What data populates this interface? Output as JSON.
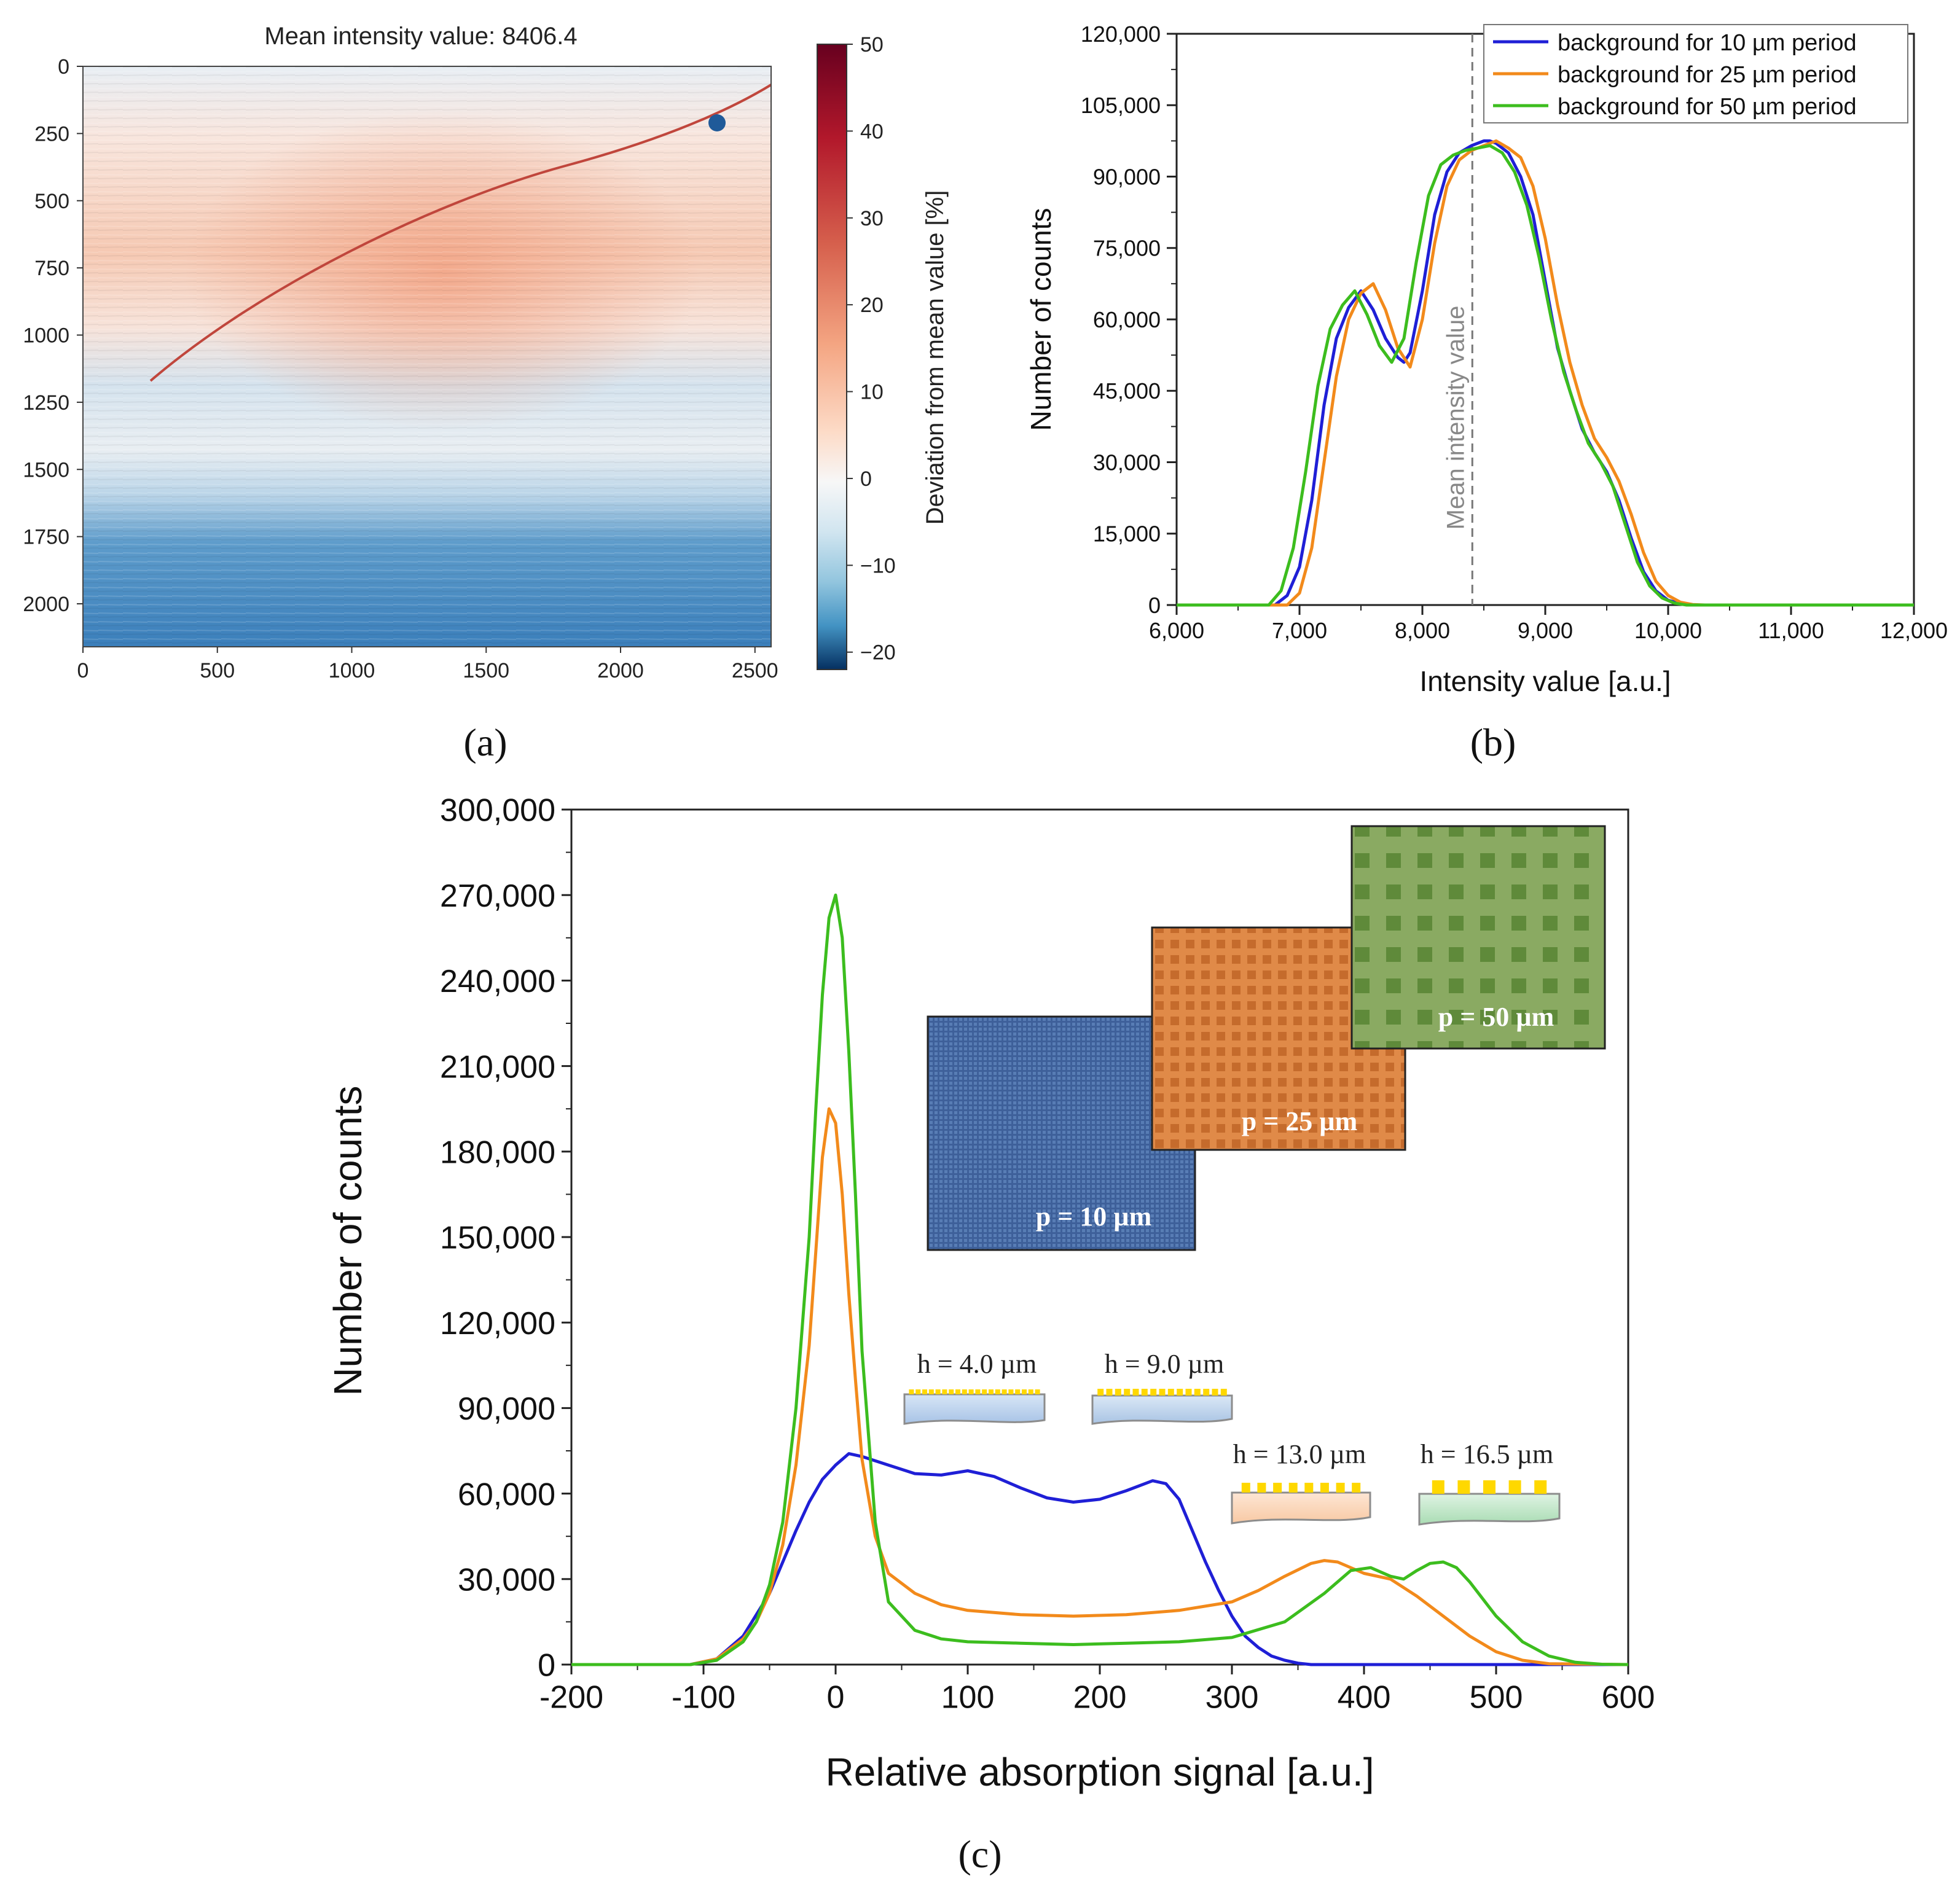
{
  "panel_labels": {
    "a": "(a)",
    "b": "(b)",
    "c": "(c)"
  },
  "chart_data": [
    {
      "id": "a",
      "type": "heatmap",
      "title": "Mean intensity value: 8406.4",
      "xlim": [
        0,
        2560
      ],
      "ylim": [
        0,
        2160
      ],
      "x_ticks": [
        "0",
        "500",
        "1000",
        "1500",
        "2000",
        "2500"
      ],
      "y_ticks": [
        "0",
        "250",
        "500",
        "750",
        "1000",
        "1250",
        "1500",
        "1750",
        "2000"
      ],
      "colorbar": {
        "label": "Deviation from mean value [%]",
        "range": [
          -22,
          50
        ],
        "ticks": [
          "50",
          "40",
          "30",
          "20",
          "10",
          "0",
          "−10",
          "−20"
        ],
        "colors": {
          "high": "#67001f",
          "mid": "#f7f7f7",
          "low": "#053061"
        }
      }
    },
    {
      "id": "b",
      "type": "line",
      "xlabel": "Intensity value [a.u.]",
      "ylabel": "Number of counts",
      "xlim": [
        6000,
        12000
      ],
      "ylim": [
        0,
        120000
      ],
      "x_ticks": [
        "6,000",
        "7,000",
        "8,000",
        "9,000",
        "10,000",
        "11,000",
        "12,000"
      ],
      "y_ticks": [
        "0",
        "15,000",
        "30,000",
        "45,000",
        "60,000",
        "75,000",
        "90,000",
        "105,000",
        "120,000"
      ],
      "mean_line": {
        "x": 8406.4,
        "label": "Mean intensity value"
      },
      "legend": "top-right",
      "series": [
        {
          "name": "background for 10 µm period",
          "color": "#1f1fd6",
          "x": [
            6000,
            6800,
            6900,
            7000,
            7100,
            7200,
            7300,
            7400,
            7500,
            7600,
            7700,
            7800,
            7850,
            7900,
            8000,
            8100,
            8200,
            8300,
            8400,
            8500,
            8550,
            8600,
            8700,
            8800,
            8900,
            9000,
            9100,
            9200,
            9300,
            9400,
            9500,
            9600,
            9700,
            9800,
            9900,
            10000,
            10100,
            10200,
            12000
          ],
          "y": [
            0,
            0,
            2000,
            8000,
            22000,
            42000,
            56000,
            62500,
            66000,
            62000,
            56000,
            52000,
            51000,
            53000,
            66000,
            82000,
            91000,
            95000,
            96500,
            97500,
            97500,
            97000,
            95000,
            90000,
            82000,
            68000,
            54000,
            45000,
            37000,
            32000,
            28000,
            22000,
            14000,
            7000,
            3000,
            1000,
            300,
            0,
            0
          ]
        },
        {
          "name": "background for 25 µm period",
          "color": "#f28a1b",
          "x": [
            6000,
            6900,
            7000,
            7100,
            7200,
            7300,
            7400,
            7500,
            7600,
            7700,
            7800,
            7900,
            8000,
            8100,
            8200,
            8300,
            8400,
            8500,
            8600,
            8700,
            8800,
            8900,
            9000,
            9100,
            9200,
            9300,
            9400,
            9500,
            9600,
            9700,
            9800,
            9900,
            10000,
            10100,
            10200,
            10300,
            12000
          ],
          "y": [
            0,
            0,
            2500,
            12000,
            30000,
            48000,
            60000,
            65500,
            67500,
            62000,
            54000,
            50000,
            60000,
            76000,
            88000,
            93500,
            95500,
            96500,
            97500,
            96000,
            94000,
            88000,
            77000,
            63000,
            51000,
            42000,
            35000,
            31000,
            26000,
            19000,
            11000,
            5000,
            2000,
            600,
            100,
            0,
            0
          ]
        },
        {
          "name": "background for 50 µm period",
          "color": "#3cbd1e",
          "x": [
            6000,
            6750,
            6850,
            6950,
            7050,
            7150,
            7250,
            7350,
            7450,
            7550,
            7650,
            7750,
            7850,
            7950,
            8050,
            8150,
            8250,
            8350,
            8450,
            8550,
            8650,
            8750,
            8850,
            8950,
            9050,
            9150,
            9250,
            9350,
            9450,
            9550,
            9650,
            9750,
            9850,
            9950,
            10050,
            10150,
            12000
          ],
          "y": [
            0,
            0,
            3000,
            12000,
            28000,
            46000,
            58000,
            63000,
            66000,
            61000,
            54500,
            51000,
            56000,
            72000,
            86000,
            92500,
            94500,
            95500,
            96000,
            96500,
            95000,
            91000,
            84000,
            73000,
            60000,
            49000,
            41000,
            34000,
            30000,
            25000,
            17000,
            9000,
            4000,
            1500,
            400,
            0,
            0
          ]
        }
      ]
    },
    {
      "id": "c",
      "type": "line",
      "xlabel": "Relative absorption signal [a.u.]",
      "ylabel": "Number of counts",
      "xlim": [
        -200,
        600
      ],
      "ylim": [
        0,
        300000
      ],
      "x_ticks": [
        "-200",
        "-100",
        "0",
        "100",
        "200",
        "300",
        "400",
        "500",
        "600"
      ],
      "y_ticks": [
        "0",
        "30,000",
        "60,000",
        "90,000",
        "120,000",
        "150,000",
        "180,000",
        "210,000",
        "240,000",
        "270,000",
        "300,000"
      ],
      "series": [
        {
          "name": "p = 10 µm",
          "color": "#1f1fd6",
          "x": [
            -200,
            -110,
            -90,
            -70,
            -50,
            -40,
            -30,
            -20,
            -10,
            0,
            10,
            20,
            40,
            60,
            80,
            100,
            120,
            140,
            160,
            180,
            200,
            220,
            240,
            250,
            260,
            270,
            280,
            290,
            300,
            310,
            320,
            330,
            340,
            350,
            360,
            600
          ],
          "y": [
            0,
            0,
            2000,
            10000,
            25000,
            36000,
            47000,
            57000,
            65000,
            70000,
            74000,
            73000,
            70000,
            67000,
            66500,
            68000,
            66000,
            62000,
            58500,
            57000,
            58000,
            61000,
            64500,
            63500,
            58000,
            47000,
            36000,
            26000,
            17000,
            10000,
            6000,
            3000,
            1500,
            500,
            0,
            0
          ]
        },
        {
          "name": "p = 25 µm",
          "color": "#f28a1b",
          "x": [
            -200,
            -110,
            -90,
            -70,
            -60,
            -50,
            -40,
            -30,
            -20,
            -15,
            -10,
            -5,
            0,
            5,
            10,
            15,
            20,
            30,
            40,
            60,
            80,
            100,
            140,
            180,
            220,
            260,
            300,
            320,
            340,
            360,
            370,
            380,
            400,
            420,
            440,
            460,
            480,
            500,
            520,
            540,
            600
          ],
          "y": [
            0,
            0,
            2000,
            9000,
            15000,
            25000,
            42000,
            70000,
            112000,
            145000,
            178000,
            195000,
            190000,
            165000,
            130000,
            100000,
            72000,
            45000,
            32000,
            25000,
            21000,
            19000,
            17500,
            17000,
            17500,
            19000,
            22000,
            26000,
            31000,
            35500,
            36500,
            36000,
            32000,
            30000,
            24000,
            17000,
            10000,
            4500,
            1500,
            300,
            0
          ]
        },
        {
          "name": "p = 50 µm",
          "color": "#3cbd1e",
          "x": [
            -200,
            -110,
            -90,
            -70,
            -60,
            -50,
            -40,
            -30,
            -20,
            -15,
            -10,
            -5,
            0,
            5,
            10,
            15,
            20,
            30,
            40,
            60,
            80,
            100,
            140,
            180,
            220,
            260,
            300,
            340,
            370,
            390,
            405,
            420,
            430,
            440,
            450,
            460,
            470,
            480,
            500,
            520,
            540,
            560,
            580,
            600
          ],
          "y": [
            0,
            0,
            1500,
            8000,
            15000,
            28000,
            50000,
            90000,
            150000,
            195000,
            235000,
            262000,
            270000,
            255000,
            215000,
            165000,
            110000,
            50000,
            22000,
            12000,
            9000,
            8000,
            7500,
            7000,
            7500,
            8000,
            9500,
            15000,
            25000,
            33000,
            34000,
            31000,
            30000,
            33000,
            35500,
            36000,
            34000,
            29000,
            17000,
            8000,
            3000,
            800,
            100,
            0
          ]
        }
      ],
      "insets": {
        "pattern_labels": [
          "p = 10 µm",
          "p = 25 µm",
          "p = 50 µm"
        ],
        "height_labels": [
          "h = 4.0 µm",
          "h = 9.0 µm",
          "h = 13.0 µm",
          "h = 16.5 µm"
        ],
        "colors": {
          "p10": "#4a6ea6",
          "p25": "#d9843f",
          "p50": "#7da14f",
          "pillar": "#ffd800"
        }
      }
    }
  ]
}
